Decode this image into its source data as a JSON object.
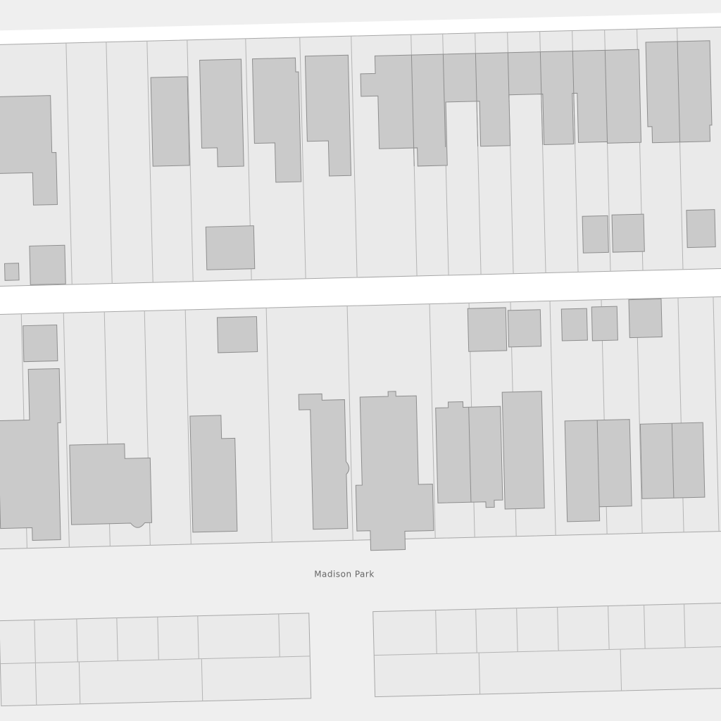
{
  "map": {
    "place_label": "Madison Park"
  }
}
